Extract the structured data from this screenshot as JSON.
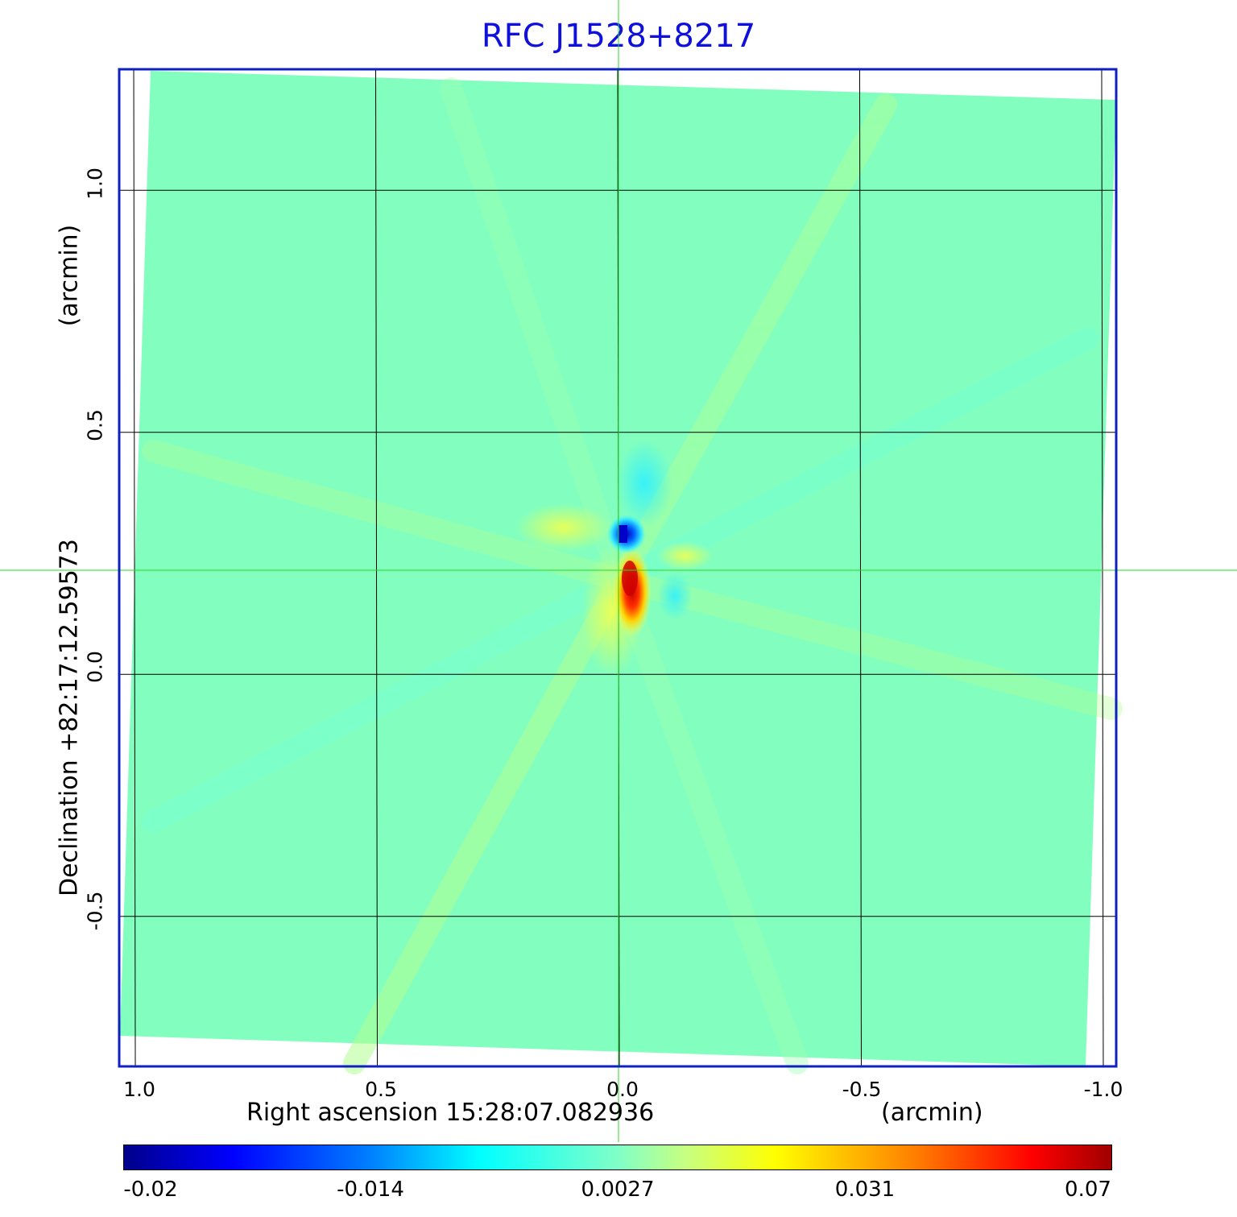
{
  "chart_data": {
    "type": "heatmap",
    "title": "RFC J1528+8217",
    "xlabel": "Right ascension  15:28:07.082936",
    "x_unit": "(arcmin)",
    "ylabel": "Declination  +82:17:12.59573",
    "y_unit": "(arcmin)",
    "x_ticks": [
      "1.0",
      "0.5",
      "0.0",
      "-0.5",
      "-1.0"
    ],
    "x_tick_values": [
      1.0,
      0.5,
      0.0,
      -0.5,
      -1.0
    ],
    "y_ticks": [
      "1.0",
      "0.5",
      "0.0",
      "-0.5"
    ],
    "y_tick_values": [
      1.0,
      0.5,
      0.0,
      -0.5
    ],
    "xlim": [
      1.03,
      -1.03
    ],
    "ylim": [
      -0.81,
      1.25
    ],
    "grid": true,
    "crosshair": {
      "x": 0.0,
      "y": 0.21
    },
    "colorbar": {
      "ticks": [
        "-0.02",
        "-0.014",
        "0.0027",
        "0.031",
        "0.07"
      ],
      "colors": [
        "#00008b",
        "#0000ff",
        "#00ffff",
        "#80ffc8",
        "#ffff00",
        "#ff0000",
        "#a00000"
      ]
    },
    "features": [
      {
        "x": -0.02,
        "y": 0.2,
        "value": 0.07
      },
      {
        "x": -0.01,
        "y": 0.29,
        "value": -0.02
      }
    ],
    "background_value": 0.0027
  }
}
